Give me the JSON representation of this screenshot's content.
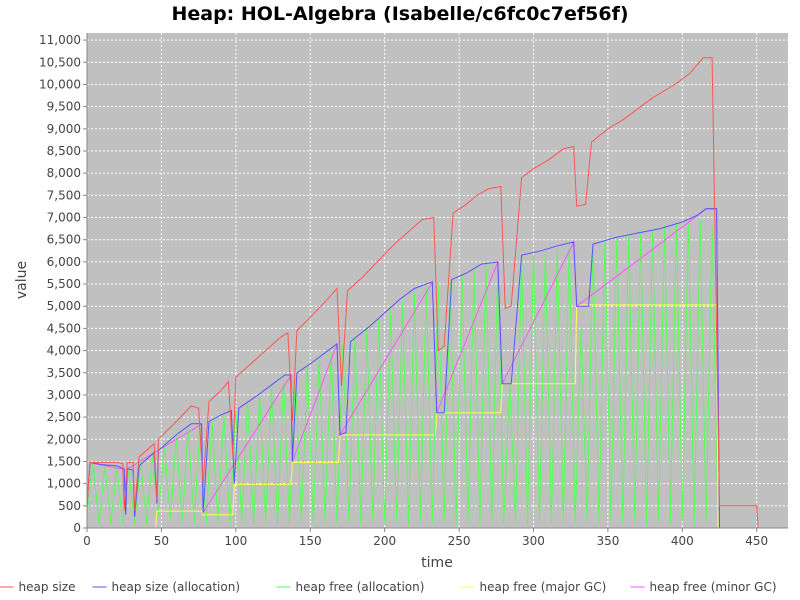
{
  "chart_data": {
    "type": "line",
    "title": "Heap: HOL-Algebra (Isabelle/c6fc0c7ef56f)",
    "x_label": "time",
    "y_label": "value",
    "xlim": [
      0,
      471
    ],
    "ylim": [
      0,
      11160
    ],
    "xticks": [
      0,
      50,
      100,
      150,
      200,
      250,
      300,
      350,
      400,
      450
    ],
    "yticks": [
      0,
      500,
      {
        "value": 1000,
        "label": "1,000"
      },
      {
        "value": 1500,
        "label": "1,500"
      },
      {
        "value": 2000,
        "label": "2,000"
      },
      {
        "value": 2500,
        "label": "2,500"
      },
      {
        "value": 3000,
        "label": "3,000"
      },
      {
        "value": 3500,
        "label": "3,500"
      },
      {
        "value": 4000,
        "label": "4,000"
      },
      {
        "value": 4500,
        "label": "4,500"
      },
      {
        "value": 5000,
        "label": "5,000"
      },
      {
        "value": 5500,
        "label": "5,500"
      },
      {
        "value": 6000,
        "label": "6,000"
      },
      {
        "value": 6500,
        "label": "6,500"
      },
      {
        "value": 7000,
        "label": "7,000"
      },
      {
        "value": 7500,
        "label": "7,500"
      },
      {
        "value": 8000,
        "label": "8,000"
      },
      {
        "value": 8500,
        "label": "8,500"
      },
      {
        "value": 9000,
        "label": "9,000"
      },
      {
        "value": 9500,
        "label": "9,500"
      },
      {
        "value": 10000,
        "label": "10,000"
      },
      {
        "value": 10500,
        "label": "10,500"
      },
      {
        "value": 11000,
        "label": "11,000"
      }
    ],
    "grid": true,
    "legend": "bottom",
    "series": [
      {
        "name": "heap size",
        "color": "#ff5555",
        "x": [
          0,
          2,
          20,
          24,
          25,
          27,
          31,
          32,
          35,
          45,
          47,
          48,
          60,
          70,
          75,
          78,
          82,
          90,
          95,
          98,
          100,
          110,
          120,
          130,
          135,
          138,
          141,
          150,
          160,
          168,
          171,
          175,
          185,
          195,
          205,
          215,
          225,
          233,
          236,
          240,
          246,
          255,
          262,
          270,
          278,
          281,
          285,
          292,
          300,
          310,
          320,
          327,
          329,
          335,
          339,
          350,
          360,
          370,
          380,
          395,
          405,
          414,
          420,
          425,
          450,
          451
        ],
        "values": [
          500,
          1480,
          1480,
          1450,
          400,
          1480,
          1480,
          400,
          1600,
          1900,
          650,
          2000,
          2400,
          2750,
          2700,
          1000,
          2850,
          3100,
          3300,
          1600,
          3400,
          3700,
          4000,
          4300,
          4400,
          2400,
          4450,
          4750,
          5100,
          5400,
          3200,
          5350,
          5650,
          6000,
          6350,
          6650,
          6950,
          7000,
          4000,
          4100,
          7100,
          7300,
          7500,
          7650,
          7700,
          4950,
          5000,
          7900,
          8100,
          8300,
          8550,
          8600,
          7250,
          7300,
          8700,
          9000,
          9200,
          9450,
          9700,
          10000,
          10250,
          10600,
          10600,
          500,
          500,
          0
        ]
      },
      {
        "name": "heap size (allocation)",
        "color": "#5555ff",
        "x": [
          0,
          2,
          10,
          20,
          25,
          26,
          27,
          31,
          32,
          35,
          45,
          47,
          48,
          60,
          70,
          77,
          78,
          82,
          90,
          97,
          99,
          102,
          115,
          125,
          133,
          137,
          138,
          141,
          150,
          160,
          168,
          170,
          174,
          177,
          190,
          200,
          210,
          220,
          232,
          235,
          240,
          245,
          255,
          265,
          276,
          279,
          285,
          292,
          305,
          315,
          327,
          329,
          337,
          340,
          355,
          370,
          385,
          400,
          410,
          416,
          423,
          425,
          450
        ],
        "values": [
          500,
          1480,
          1430,
          1400,
          1330,
          300,
          1340,
          1300,
          250,
          1400,
          1700,
          550,
          1750,
          2100,
          2350,
          2350,
          350,
          2400,
          2550,
          2650,
          1000,
          2700,
          3000,
          3250,
          3450,
          3450,
          1500,
          3500,
          3700,
          3950,
          4150,
          2100,
          2150,
          4200,
          4550,
          4850,
          5150,
          5400,
          5550,
          2600,
          2600,
          5600,
          5750,
          5950,
          6000,
          3250,
          3250,
          6150,
          6250,
          6350,
          6450,
          5000,
          5000,
          6400,
          6550,
          6650,
          6750,
          6900,
          7050,
          7200,
          7200,
          0,
          0
        ]
      },
      {
        "name": "heap free (allocation)",
        "color": "#55ff55",
        "x": [
          0,
          4,
          8,
          12,
          16,
          20,
          24,
          28,
          32,
          36,
          40,
          44,
          48,
          52,
          56,
          60,
          64,
          68,
          72,
          76,
          80,
          84,
          88,
          92,
          96,
          100,
          104,
          108,
          112,
          116,
          120,
          124,
          128,
          132,
          136,
          140,
          144,
          148,
          152,
          156,
          160,
          164,
          168,
          172,
          176,
          180,
          184,
          188,
          192,
          196,
          200,
          204,
          208,
          212,
          216,
          220,
          224,
          228,
          232,
          236,
          240,
          244,
          248,
          252,
          256,
          260,
          264,
          268,
          272,
          276,
          280,
          284,
          288,
          292,
          296,
          300,
          304,
          308,
          312,
          316,
          320,
          324,
          328,
          332,
          336,
          340,
          344,
          348,
          352,
          356,
          360,
          364,
          368,
          372,
          376,
          380,
          384,
          388,
          392,
          396,
          400,
          404,
          408,
          412,
          416,
          420,
          424
        ],
        "values": [
          300,
          1450,
          100,
          1400,
          100,
          1350,
          100,
          1300,
          100,
          1500,
          100,
          1650,
          300,
          1900,
          200,
          2050,
          150,
          2250,
          100,
          2300,
          100,
          2400,
          150,
          2550,
          100,
          2650,
          150,
          2850,
          100,
          3000,
          150,
          3150,
          100,
          3350,
          100,
          3450,
          150,
          3650,
          100,
          3800,
          150,
          4000,
          100,
          4150,
          150,
          4300,
          100,
          4500,
          150,
          4700,
          100,
          4900,
          150,
          5100,
          100,
          5300,
          150,
          5450,
          100,
          5500,
          150,
          5550,
          100,
          5700,
          150,
          5850,
          100,
          5950,
          150,
          5950,
          100,
          3250,
          150,
          6100,
          100,
          6150,
          150,
          6250,
          100,
          6300,
          150,
          6400,
          100,
          4500,
          150,
          6350,
          100,
          6450,
          150,
          6550,
          100,
          6600,
          150,
          6650,
          100,
          6700,
          150,
          6800,
          100,
          6850,
          150,
          6900,
          100,
          6950,
          150,
          6800,
          0
        ]
      },
      {
        "name": "heap free (major GC)",
        "color": "#ffff55",
        "x": [
          0,
          46,
          47,
          77,
          78,
          98,
          99,
          137,
          138,
          169,
          170,
          234,
          235,
          278,
          279,
          328,
          329,
          423,
          424,
          450
        ],
        "values": [
          0,
          0,
          380,
          380,
          300,
          300,
          980,
          980,
          1480,
          1480,
          2100,
          2100,
          2600,
          2600,
          3250,
          3250,
          5030,
          5030,
          0,
          0
        ]
      },
      {
        "name": "heap free (minor GC)",
        "color": "#ff55ff",
        "x": [
          0,
          2,
          25,
          26,
          27,
          77,
          78,
          137,
          138,
          168,
          170,
          232,
          235,
          276,
          279,
          327,
          329,
          416,
          423,
          425
        ],
        "values": [
          500,
          1470,
          1320,
          300,
          1330,
          2340,
          350,
          3440,
          1500,
          4140,
          2100,
          5540,
          2600,
          5990,
          3250,
          6440,
          5000,
          7190,
          7190,
          0
        ]
      }
    ]
  }
}
